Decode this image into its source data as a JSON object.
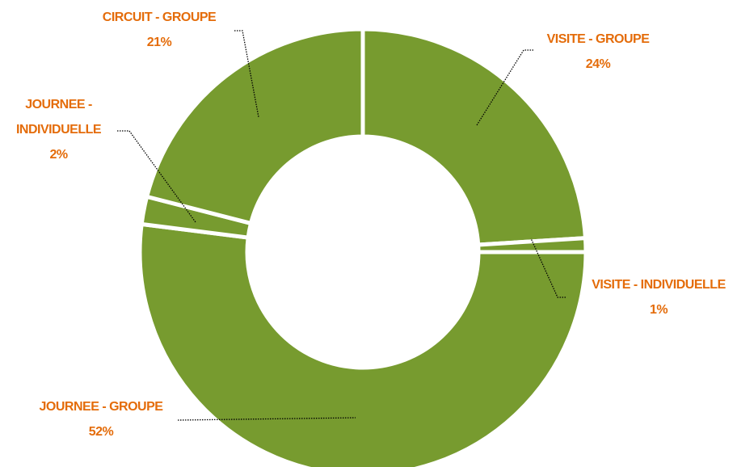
{
  "chart_data": {
    "type": "donut",
    "categories": [
      "VISITE - GROUPE",
      "VISITE - INDIVIDUELLE",
      "JOURNEE - GROUPE",
      "JOURNEE - INDIVIDUELLE",
      "CIRCUIT - GROUPE"
    ],
    "values": [
      24,
      1,
      52,
      2,
      21
    ],
    "value_labels": [
      "24%",
      "1%",
      "52%",
      "2%",
      "21%"
    ],
    "color": "#779b2f"
  }
}
